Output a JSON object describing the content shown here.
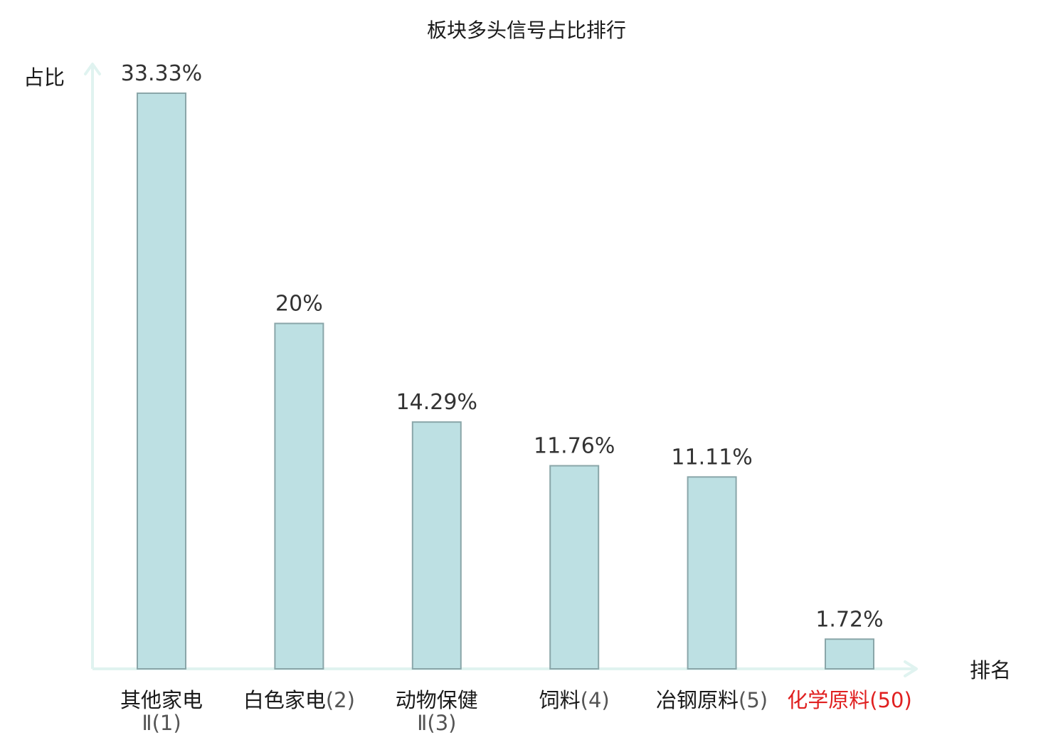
{
  "chart_data": {
    "type": "bar",
    "title": "板块多头信号占比排行",
    "ylabel": "占比",
    "xlabel": "排名",
    "categories": [
      {
        "name": "其他家电",
        "rank": "Ⅱ(1)",
        "highlight": false
      },
      {
        "name": "白色家电",
        "rank": "(2)",
        "highlight": false
      },
      {
        "name": "动物保健",
        "rank": "Ⅱ(3)",
        "highlight": false
      },
      {
        "name": "饲料",
        "rank": "(4)",
        "highlight": false
      },
      {
        "name": "冶钢原料",
        "rank": "(5)",
        "highlight": false
      },
      {
        "name": "化学原料",
        "rank": "(50)",
        "highlight": true
      }
    ],
    "values": [
      33.33,
      20,
      14.29,
      11.76,
      11.11,
      1.72
    ],
    "value_labels": [
      "33.33%",
      "20%",
      "14.29%",
      "11.76%",
      "11.11%",
      "1.72%"
    ],
    "ylim": [
      0,
      33.33
    ],
    "grid": false,
    "colors": {
      "bar_fill": "#bde0e3",
      "bar_stroke": "#8aa6a9",
      "axis": "#e0f3f0",
      "highlight": "#e02020"
    }
  }
}
